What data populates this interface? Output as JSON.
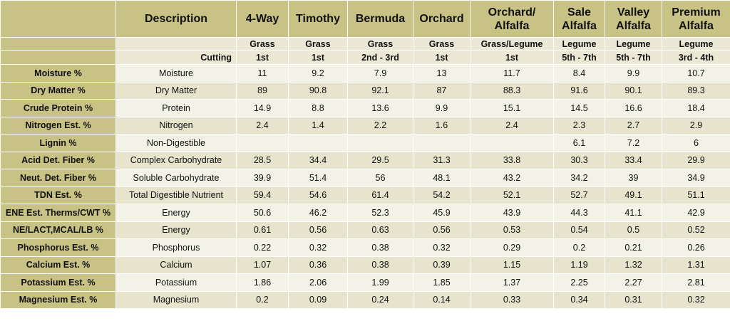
{
  "table": {
    "header": {
      "description": "Description",
      "columns": [
        [
          "4-Way"
        ],
        [
          "Timothy"
        ],
        [
          "Bermuda"
        ],
        [
          "Orchard"
        ],
        [
          "Orchard/",
          "Alfalfa"
        ],
        [
          "Sale",
          "Alfalfa"
        ],
        [
          "Valley",
          "Alfalfa"
        ],
        [
          "Premium",
          "Alfalfa"
        ]
      ]
    },
    "types": [
      "Grass",
      "Grass",
      "Grass",
      "Grass",
      "Grass/Legume",
      "Legume",
      "Legume",
      "Legume"
    ],
    "cutting_label": "Cutting",
    "cuttings": [
      "1st",
      "1st",
      "2nd - 3rd",
      "1st",
      "1st",
      "5th - 7th",
      "5th - 7th",
      "3rd - 4th"
    ],
    "rows": [
      {
        "label": "Moisture %",
        "description": "Moisture",
        "values": [
          11,
          9.2,
          7.9,
          13,
          11.7,
          8.4,
          9.9,
          10.7
        ]
      },
      {
        "label": "Dry Matter %",
        "description": "Dry Matter",
        "values": [
          89,
          90.8,
          92.1,
          87,
          88.3,
          91.6,
          90.1,
          89.3
        ]
      },
      {
        "label": "Crude Protein %",
        "description": "Protein",
        "values": [
          14.9,
          8.8,
          13.6,
          9.9,
          15.1,
          14.5,
          16.6,
          18.4
        ]
      },
      {
        "label": "Nitrogen Est. %",
        "description": "Nitrogen",
        "values": [
          2.4,
          1.4,
          2.2,
          1.6,
          2.4,
          2.3,
          2.7,
          2.9
        ]
      },
      {
        "label": "Lignin %",
        "description": "Non-Digestible",
        "values": [
          null,
          null,
          null,
          null,
          null,
          6.1,
          7.2,
          6
        ]
      },
      {
        "label": "Acid Det. Fiber %",
        "description": "Complex Carbohydrate",
        "values": [
          28.5,
          34.4,
          29.5,
          31.3,
          33.8,
          30.3,
          33.4,
          29.9
        ]
      },
      {
        "label": "Neut. Det. Fiber %",
        "description": "Soluble Carbohydrate",
        "values": [
          39.9,
          51.4,
          56,
          48.1,
          43.2,
          34.2,
          39,
          34.9
        ]
      },
      {
        "label": "TDN Est. %",
        "description": "Total Digestible Nutrient",
        "values": [
          59.4,
          54.6,
          61.4,
          54.2,
          52.1,
          52.7,
          49.1,
          51.1
        ]
      },
      {
        "label": "ENE Est. Therms/CWT %",
        "description": "Energy",
        "values": [
          50.6,
          46.2,
          52.3,
          45.9,
          43.9,
          44.3,
          41.1,
          42.9
        ]
      },
      {
        "label": "NE/LACT,MCAL/LB %",
        "description": "Energy",
        "values": [
          0.61,
          0.56,
          0.63,
          0.56,
          0.53,
          0.54,
          0.5,
          0.52
        ]
      },
      {
        "label": "Phosphorus Est. %",
        "description": "Phosphorus",
        "values": [
          0.22,
          0.32,
          0.38,
          0.32,
          0.29,
          0.2,
          0.21,
          0.26
        ]
      },
      {
        "label": "Calcium Est. %",
        "description": "Calcium",
        "values": [
          1.07,
          0.36,
          0.38,
          0.39,
          1.15,
          1.19,
          1.32,
          1.31
        ]
      },
      {
        "label": "Potassium Est. %",
        "description": "Potassium",
        "values": [
          1.86,
          2.06,
          1.99,
          1.85,
          1.37,
          2.25,
          2.27,
          2.81
        ]
      },
      {
        "label": "Magnesium Est. %",
        "description": "Magnesium",
        "values": [
          0.2,
          0.09,
          0.24,
          0.14,
          0.33,
          0.34,
          0.31,
          0.32
        ]
      }
    ]
  }
}
